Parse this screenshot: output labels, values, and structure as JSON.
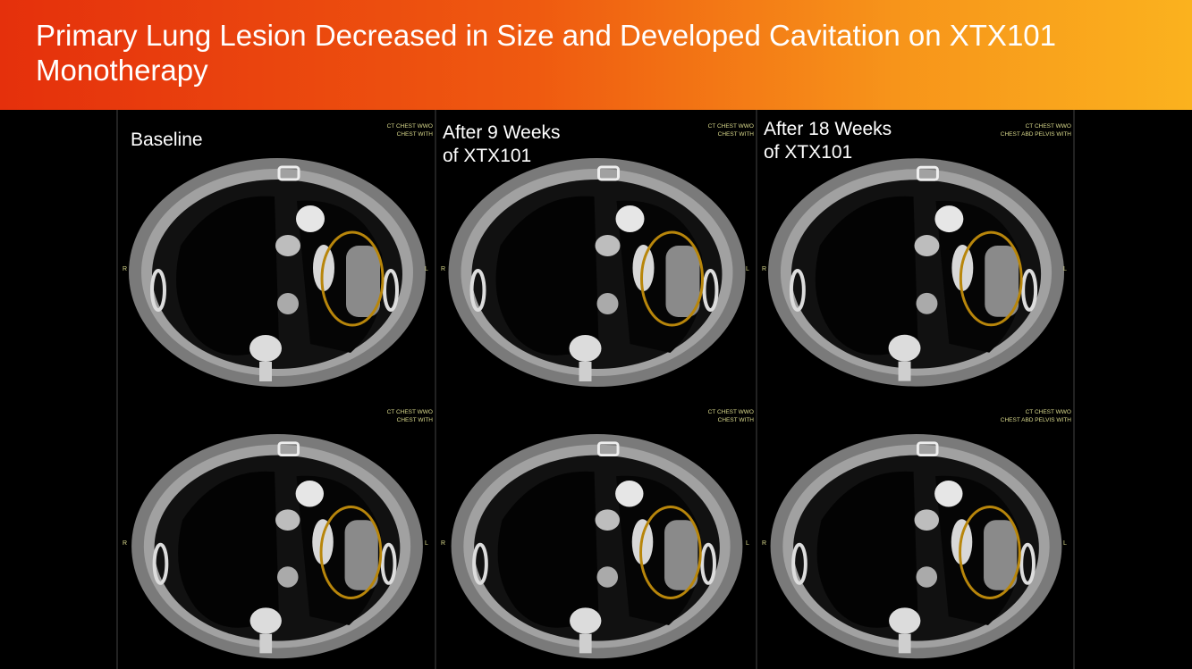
{
  "header": {
    "title": "Primary Lung Lesion Decreased in Size and Developed Cavitation on XTX101 Monotherapy"
  },
  "panels": [
    {
      "caption_lines": [
        "Baseline"
      ],
      "scan_labels": [
        "CT CHEST WWO",
        "CHEST WITH"
      ],
      "side_left": "R",
      "side_right": "L"
    },
    {
      "caption_lines": [
        "After 9 Weeks",
        "of XTX101"
      ],
      "scan_labels": [
        "CT CHEST WWO",
        "CHEST WITH"
      ],
      "side_left": "R",
      "side_right": "L"
    },
    {
      "caption_lines": [
        "After 18 Weeks",
        "of XTX101"
      ],
      "scan_labels": [
        "CT CHEST WWO",
        "CHEST ABD PELVIS WITH"
      ],
      "side_left": "R",
      "side_right": "L"
    },
    {
      "scan_labels": [
        "CT CHEST WWO",
        "CHEST WITH"
      ],
      "side_left": "R",
      "side_right": "L"
    },
    {
      "scan_labels": [
        "CT CHEST WWO",
        "CHEST WITH"
      ],
      "side_left": "R",
      "side_right": "L"
    },
    {
      "scan_labels": [
        "CT CHEST WWO",
        "CHEST ABD PELVIS WITH"
      ],
      "side_left": "R",
      "side_right": "L"
    }
  ]
}
